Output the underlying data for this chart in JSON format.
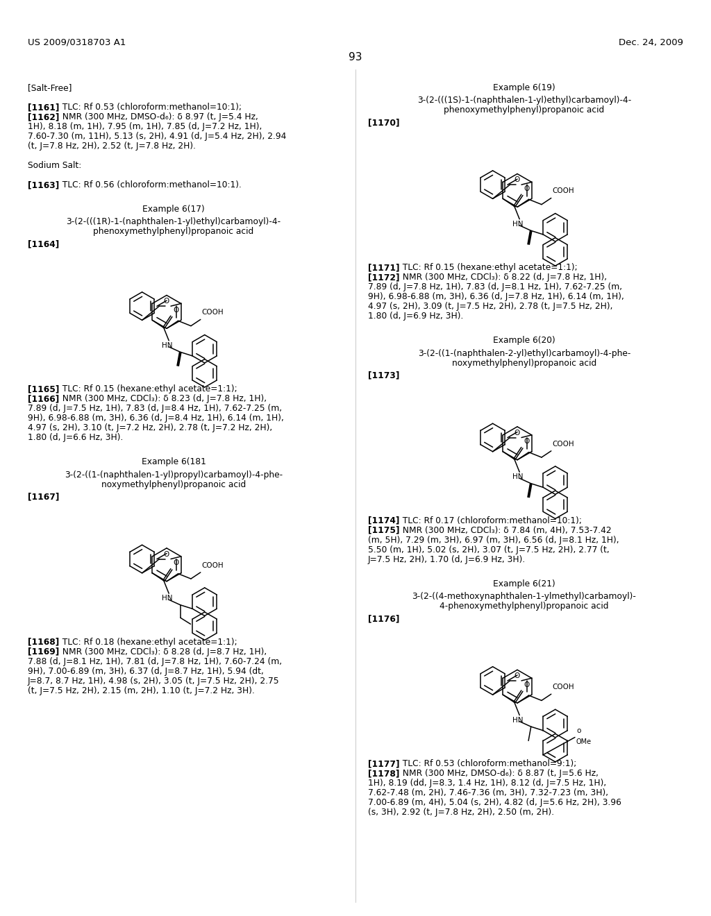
{
  "header_left": "US 2009/0318703 A1",
  "header_right": "Dec. 24, 2009",
  "page_number": "93",
  "bg": "#ffffff",
  "text_color": "#000000"
}
